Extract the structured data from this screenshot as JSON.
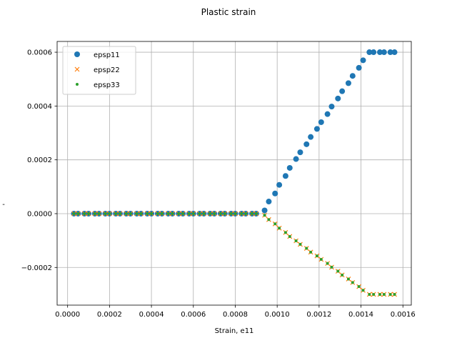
{
  "chart_data": {
    "type": "scatter",
    "title": "Plastic strain",
    "xlabel": "Strain, e11",
    "ylabel": "-",
    "xlim": [
      -5e-05,
      0.00164
    ],
    "ylim": [
      -0.00034,
      0.00064
    ],
    "grid": true,
    "legend_position": "top-left",
    "x_ticks": [
      0,
      0.0002,
      0.0004,
      0.0006,
      0.0008,
      0.001,
      0.0012,
      0.0014,
      0.0016
    ],
    "x_tick_labels": [
      "0.0000",
      "0.0002",
      "0.0004",
      "0.0006",
      "0.0008",
      "0.0010",
      "0.0012",
      "0.0014",
      "0.0016"
    ],
    "y_ticks": [
      -0.0002,
      0,
      0.0002,
      0.0004,
      0.0006
    ],
    "y_tick_labels": [
      "−0.0002",
      "0.0000",
      "0.0002",
      "0.0004",
      "0.0006"
    ],
    "x": [
      3e-05,
      5e-05,
      8e-05,
      0.0001,
      0.00013,
      0.00015,
      0.00018,
      0.0002,
      0.00023,
      0.00025,
      0.00028,
      0.0003,
      0.00033,
      0.00035,
      0.00038,
      0.0004,
      0.00043,
      0.00045,
      0.00048,
      0.0005,
      0.00053,
      0.00055,
      0.00058,
      0.0006,
      0.00063,
      0.00065,
      0.00068,
      0.0007,
      0.00073,
      0.00075,
      0.00078,
      0.0008,
      0.00083,
      0.00085,
      0.00088,
      0.0009,
      0.00094,
      0.00096,
      0.00099,
      0.00101,
      0.00104,
      0.00106,
      0.00109,
      0.00111,
      0.00114,
      0.00116,
      0.00119,
      0.00121,
      0.00124,
      0.00126,
      0.00129,
      0.00131,
      0.00134,
      0.00136,
      0.00139,
      0.00141,
      0.00144,
      0.00146,
      0.00149,
      0.00151,
      0.00154,
      0.00156
    ],
    "series": [
      {
        "name": "epsp11",
        "marker": "circle",
        "color": "#1f77b4",
        "values": [
          0,
          0,
          0,
          0,
          0,
          0,
          0,
          0,
          0,
          0,
          0,
          0,
          0,
          0,
          0,
          0,
          0,
          0,
          0,
          0,
          0,
          0,
          0,
          0,
          0,
          0,
          0,
          0,
          0,
          0,
          0,
          0,
          0,
          0,
          0,
          0,
          1.2e-05,
          4.5e-05,
          7.5e-05,
          0.000107,
          0.00014,
          0.00017,
          0.000203,
          0.000228,
          0.000258,
          0.000285,
          0.000315,
          0.00034,
          0.00037,
          0.000398,
          0.000428,
          0.000455,
          0.000485,
          0.000512,
          0.000542,
          0.00057,
          0.0006,
          0.0006,
          0.0006,
          0.0006,
          0.0006,
          0.0006
        ]
      },
      {
        "name": "epsp22",
        "marker": "x",
        "color": "#ff7f0e",
        "values": [
          0,
          0,
          0,
          0,
          0,
          0,
          0,
          0,
          0,
          0,
          0,
          0,
          0,
          0,
          0,
          0,
          0,
          0,
          0,
          0,
          0,
          0,
          0,
          0,
          0,
          0,
          0,
          0,
          0,
          0,
          0,
          0,
          0,
          0,
          0,
          0,
          -6e-06,
          -2.2e-05,
          -3.8e-05,
          -5.4e-05,
          -7e-05,
          -8.5e-05,
          -0.000101,
          -0.000114,
          -0.000129,
          -0.000143,
          -0.000157,
          -0.00017,
          -0.000185,
          -0.000199,
          -0.000214,
          -0.000228,
          -0.000243,
          -0.000256,
          -0.000271,
          -0.000285,
          -0.0003,
          -0.0003,
          -0.0003,
          -0.0003,
          -0.0003,
          -0.0003
        ]
      },
      {
        "name": "epsp33",
        "marker": "point",
        "color": "#2ca02c",
        "values": [
          0,
          0,
          0,
          0,
          0,
          0,
          0,
          0,
          0,
          0,
          0,
          0,
          0,
          0,
          0,
          0,
          0,
          0,
          0,
          0,
          0,
          0,
          0,
          0,
          0,
          0,
          0,
          0,
          0,
          0,
          0,
          0,
          0,
          0,
          0,
          0,
          -6e-06,
          -2.2e-05,
          -3.8e-05,
          -5.4e-05,
          -7e-05,
          -8.5e-05,
          -0.000101,
          -0.000114,
          -0.000129,
          -0.000143,
          -0.000157,
          -0.00017,
          -0.000185,
          -0.000199,
          -0.000214,
          -0.000228,
          -0.000243,
          -0.000256,
          -0.000271,
          -0.000285,
          -0.0003,
          -0.0003,
          -0.0003,
          -0.0003,
          -0.0003,
          -0.0003
        ]
      }
    ]
  }
}
